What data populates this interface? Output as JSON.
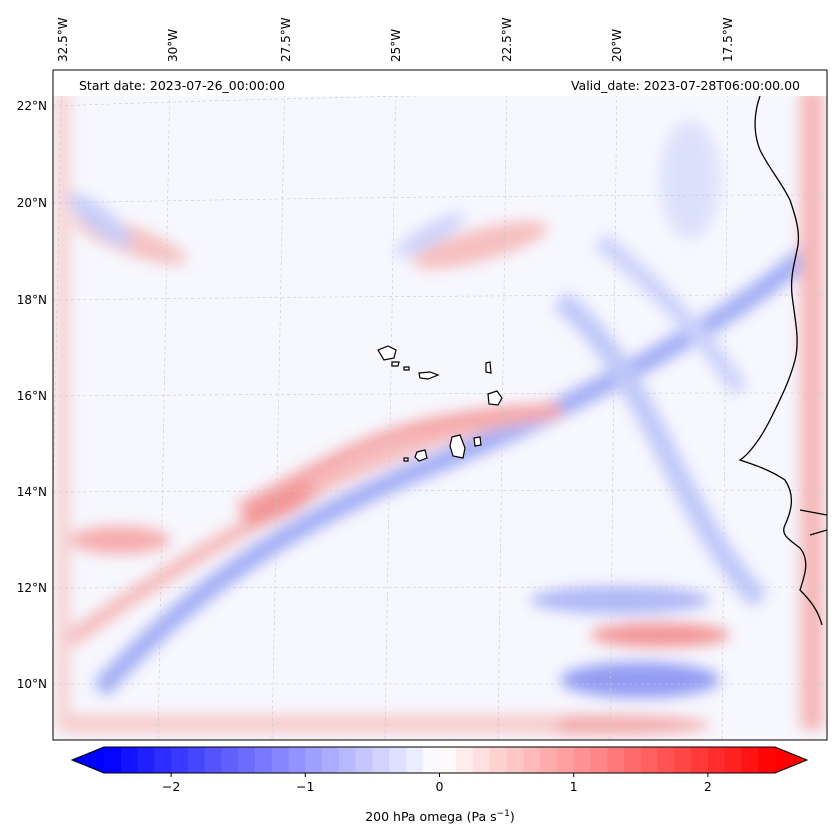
{
  "map": {
    "start_date_label": "Start date: 2023-07-26_00:00:00",
    "valid_date_label": "Valid_date: 2023-07-28T06:00:00.00",
    "lon_labels": [
      "32.5°W",
      "30°W",
      "27.5°W",
      "25°W",
      "22.5°W",
      "20°W",
      "17.5°W"
    ],
    "lat_labels": [
      "22°N",
      "20°N",
      "18°N",
      "16°N",
      "14°N",
      "12°N",
      "10°N"
    ],
    "extent": {
      "lon_min": -33.0,
      "lon_max": -15.7,
      "lat_min": 8.9,
      "lat_max": 22.8
    },
    "field_name": "200 hPa omega",
    "colors": {
      "negative": "#0000ff",
      "zero": "#ffffff",
      "positive": "#ff0000",
      "coast": "#000000"
    }
  },
  "colorbar": {
    "ticks": [
      "−2",
      "−1",
      "0",
      "1",
      "2"
    ],
    "tick_values": [
      -2,
      -1,
      0,
      1,
      2
    ],
    "vmin": -2.5,
    "vmax": 2.5,
    "label_main": "200 hPa omega (Pa s",
    "label_sup": "−1",
    "label_end": ")"
  }
}
